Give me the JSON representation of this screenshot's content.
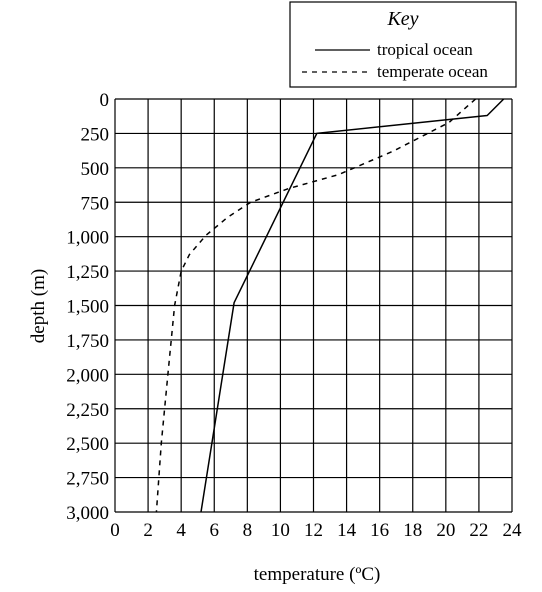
{
  "chart_data": {
    "type": "line",
    "title": "",
    "xlabel": "temperature  (ºC)",
    "ylabel": "depth (m)",
    "xlim": [
      0,
      24
    ],
    "ylim": [
      0,
      3000
    ],
    "y_inverted": true,
    "grid": true,
    "legend_placement": "top-right",
    "legend_title": "Key",
    "x_ticks": [
      "0",
      "2",
      "4",
      "6",
      "8",
      "10",
      "12",
      "14",
      "16",
      "18",
      "20",
      "22",
      "24"
    ],
    "y_ticks": [
      "0",
      "250",
      "500",
      "750",
      "1,000",
      "1,250",
      "1,500",
      "1,750",
      "2,000",
      "2,250",
      "2,500",
      "2,750",
      "3,000"
    ],
    "series": [
      {
        "name": "tropical ocean",
        "style": "solid",
        "color": "#000000",
        "points": [
          [
            23.5,
            0
          ],
          [
            22.5,
            120
          ],
          [
            12.2,
            250
          ],
          [
            7.2,
            1480
          ],
          [
            5.2,
            3000
          ]
        ]
      },
      {
        "name": "temperate ocean",
        "style": "dashed",
        "color": "#000000",
        "points": [
          [
            21.8,
            0
          ],
          [
            20.2,
            170
          ],
          [
            16.8,
            380
          ],
          [
            13.5,
            550
          ],
          [
            10.5,
            650
          ],
          [
            8.2,
            750
          ],
          [
            6.8,
            860
          ],
          [
            5.5,
            990
          ],
          [
            4.5,
            1130
          ],
          [
            4.0,
            1250
          ],
          [
            3.6,
            1500
          ],
          [
            3.2,
            2000
          ],
          [
            2.8,
            2500
          ],
          [
            2.5,
            3000
          ]
        ]
      }
    ]
  }
}
